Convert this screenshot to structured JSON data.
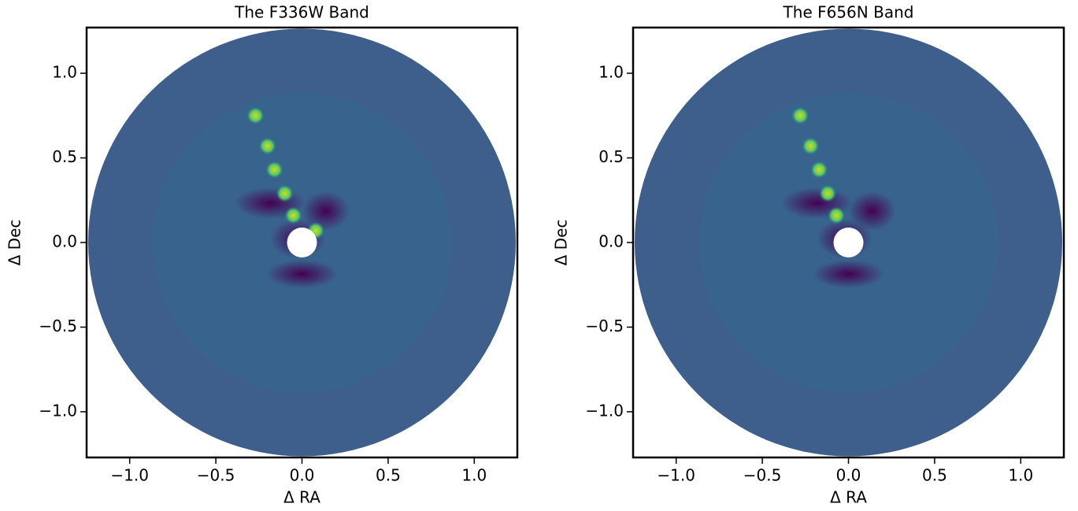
{
  "chart_data": [
    {
      "type": "image",
      "title": "The F336W Band",
      "xlabel": "Δ RA",
      "ylabel": "Δ Dec",
      "xlim": [
        -1.25,
        1.25
      ],
      "ylim": [
        -1.27,
        1.27
      ],
      "xticks": [
        {
          "value": -1.0,
          "label": "−1.0"
        },
        {
          "value": -0.5,
          "label": "−0.5"
        },
        {
          "value": 0.0,
          "label": "0.0"
        },
        0.5,
        {
          "value": 1.0,
          "label": "1.0"
        }
      ],
      "yticks": [
        {
          "value": -1.0,
          "label": "−1.0"
        },
        {
          "value": -0.5,
          "label": "−0.5"
        },
        {
          "value": 0.0,
          "label": "0.0"
        },
        0.5,
        {
          "value": 1.0,
          "label": "1.0"
        }
      ],
      "sources": {
        "x": [
          -0.27,
          -0.2,
          -0.16,
          -0.1,
          -0.05,
          0.08
        ],
        "y": [
          0.75,
          0.57,
          0.43,
          0.29,
          0.16,
          0.07
        ]
      }
    },
    {
      "type": "image",
      "title": "The F656N Band",
      "xlabel": "Δ RA",
      "ylabel": "Δ Dec",
      "xlim": [
        -1.25,
        1.25
      ],
      "ylim": [
        -1.27,
        1.27
      ],
      "xticks": [
        {
          "value": -1.0,
          "label": "−1.0"
        },
        {
          "value": -0.5,
          "label": "−0.5"
        },
        {
          "value": 0.0,
          "label": "0.0"
        },
        0.5,
        {
          "value": 1.0,
          "label": "1.0"
        }
      ],
      "yticks": [
        {
          "value": -1.0,
          "label": "−1.0"
        },
        {
          "value": -0.5,
          "label": "−0.5"
        },
        {
          "value": 0.0,
          "label": "0.0"
        },
        0.5,
        {
          "value": 1.0,
          "label": "1.0"
        }
      ],
      "sources": {
        "x": [
          -0.28,
          -0.22,
          -0.17,
          -0.12,
          -0.07
        ],
        "y": [
          0.75,
          0.57,
          0.43,
          0.29,
          0.16
        ]
      }
    }
  ]
}
